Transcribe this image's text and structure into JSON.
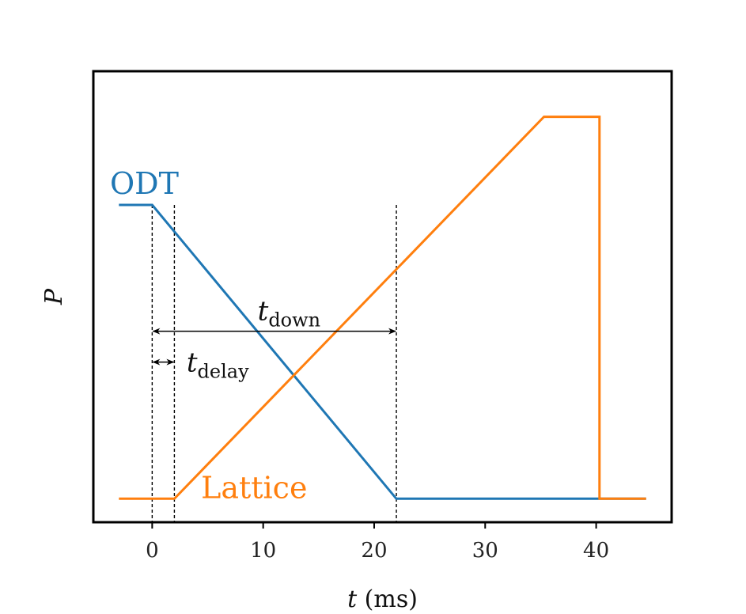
{
  "chart_data": {
    "type": "line",
    "xlabel": "t (ms)",
    "xlabel_var": "t",
    "xlabel_unit": "(ms)",
    "ylabel": "P",
    "xlim": [
      -5.3,
      46.8
    ],
    "ylim": [
      -0.08,
      1.455
    ],
    "x_ticks": [
      0,
      10,
      20,
      30,
      40
    ],
    "y_ticks": [],
    "grid": false,
    "legend": "none",
    "series": [
      {
        "name": "ODT",
        "color": "#1f77b4",
        "x": [
          -3,
          0,
          22,
          40.3,
          44.5
        ],
        "y": [
          1,
          1,
          0,
          0,
          0
        ]
      },
      {
        "name": "Lattice",
        "color": "#ff7f0e",
        "x": [
          -3,
          2,
          35.3,
          40.3,
          40.3,
          44.5
        ],
        "y": [
          0,
          0,
          1.3,
          1.3,
          0,
          0
        ]
      }
    ],
    "vlines": [
      0,
      2,
      22
    ],
    "annotations": [
      {
        "id": "t_down",
        "main": "t",
        "sub": "down",
        "from_x": 0,
        "to_x": 22,
        "y": 0.57
      },
      {
        "id": "t_delay",
        "main": "t",
        "sub": "delay",
        "from_x": 0,
        "to_x": 2,
        "y": 0.465
      }
    ]
  }
}
